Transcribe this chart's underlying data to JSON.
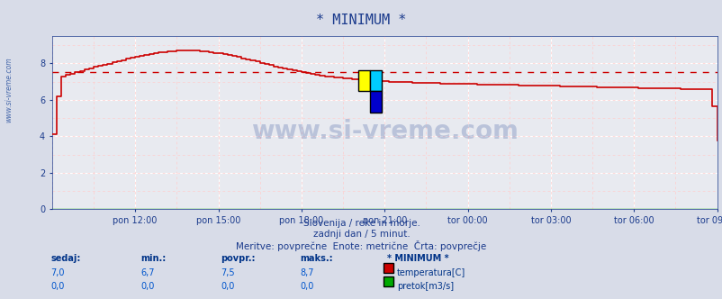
{
  "title": "* MINIMUM *",
  "subtitle1": "Slovenija / reke in morje.",
  "subtitle2": "zadnji dan / 5 minut.",
  "subtitle3": "Meritve: povprečne  Enote: metrične  Črta: povprečje",
  "xlabel_tick_positions": [
    36,
    72,
    108,
    144,
    180,
    216,
    252,
    288
  ],
  "xlabel_ticks": [
    "pon 12:00",
    "pon 15:00",
    "pon 18:00",
    "pon 21:00",
    "tor 00:00",
    "tor 03:00",
    "tor 06:00",
    "tor 09:00"
  ],
  "ylabel_ticks": [
    0,
    2,
    4,
    6,
    8
  ],
  "ylim": [
    0,
    9.5
  ],
  "xlim": [
    0,
    288
  ],
  "avg_value": 7.5,
  "bg_color": "#d8dce8",
  "plot_bg_color": "#e8eaf0",
  "grid_color_major": "#ffffff",
  "grid_color_minor": "#ffcccc",
  "temp_color": "#cc0000",
  "flow_color": "#00aa00",
  "avg_line_color": "#cc0000",
  "watermark_color": "#1a3a8c",
  "sidebar_color": "#4466aa",
  "table_header_color": "#003388",
  "table_value_color": "#0055cc",
  "sedaj": 7.0,
  "min_val": 6.7,
  "povpr": 7.5,
  "maks": 8.7,
  "sedaj2": 0.0,
  "min_val2": 0.0,
  "povpr2": 0.0,
  "maks2": 0.0
}
